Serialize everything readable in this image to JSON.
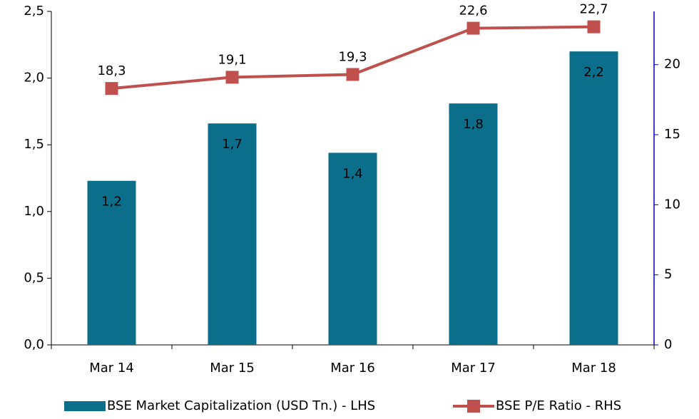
{
  "chart_data": {
    "type": "bar",
    "categories": [
      "Mar 14",
      "Mar 15",
      "Mar 16",
      "Mar 17",
      "Mar 18"
    ],
    "series": [
      {
        "name": "BSE Market Capitalization (USD Tn.) - LHS",
        "type": "bar",
        "color": "#0b6e8a",
        "values": [
          1.23,
          1.66,
          1.44,
          1.81,
          2.2
        ],
        "value_labels": [
          "1,2",
          "1,7",
          "1,4",
          "1,8",
          "2,2"
        ]
      },
      {
        "name": "BSE P/E Ratio - RHS",
        "type": "line",
        "axis": "y2",
        "color": "#c0504d",
        "values": [
          18.3,
          19.1,
          19.3,
          22.6,
          22.7
        ],
        "value_labels": [
          "18,3",
          "19,1",
          "19,3",
          "22,6",
          "22,7"
        ]
      }
    ],
    "ylim": [
      0,
      2.5
    ],
    "yticks": [
      {
        "value": 0,
        "label": "0,0"
      },
      {
        "value": 0.5,
        "label": "0,5"
      },
      {
        "value": 1,
        "label": "1,0"
      },
      {
        "value": 1.5,
        "label": "1,5"
      },
      {
        "value": 2,
        "label": "2,0"
      },
      {
        "value": 2.5,
        "label": "2,5"
      }
    ],
    "y2lim": [
      0,
      23.8
    ],
    "y2ticks": [
      0,
      5,
      10,
      15,
      20
    ],
    "legend": "bottom"
  }
}
